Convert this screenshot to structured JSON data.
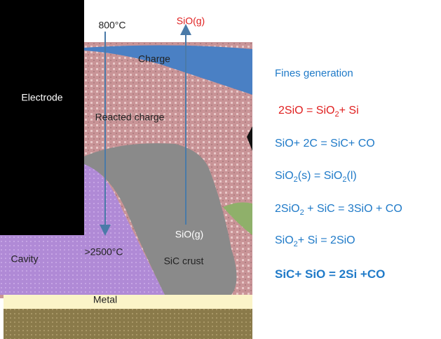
{
  "diagram": {
    "labels": {
      "temp_top": "800°C",
      "sio_top": "SiO(g)",
      "charge": "Charge",
      "electrode": "Electrode",
      "reacted_charge": "Reacted charge",
      "sio_bottom": "SiO(g)",
      "cavity": "Cavity",
      "temp_bottom": ">2500°C",
      "sic_crust": "SiC crust",
      "metal": "Metal"
    }
  },
  "side": {
    "heading": "Fines generation",
    "equations": [
      [
        {
          "t": "2SiO = SiO"
        },
        {
          "sub": "2"
        },
        {
          "t": "+ Si"
        }
      ],
      [
        {
          "t": "SiO+ 2C = SiC+ CO"
        }
      ],
      [
        {
          "t": "SiO"
        },
        {
          "sub": "2"
        },
        {
          "t": "(s) = SiO"
        },
        {
          "sub": "2"
        },
        {
          "t": "(l)"
        }
      ],
      [
        {
          "t": "2SiO"
        },
        {
          "sub": "2"
        },
        {
          "t": " + SiC = 3SiO + CO"
        }
      ],
      [
        {
          "t": "SiO"
        },
        {
          "sub": "2"
        },
        {
          "t": "+ Si = 2SiO"
        }
      ],
      [
        {
          "t": "SiC+ SiO = 2Si +CO"
        }
      ]
    ]
  }
}
